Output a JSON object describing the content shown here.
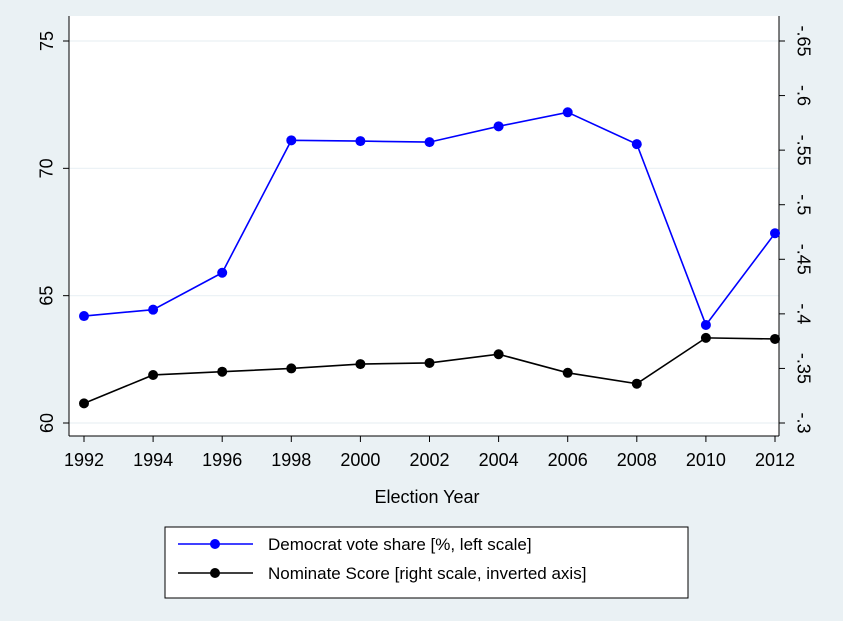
{
  "chart_data": {
    "type": "line",
    "xlabel": "Election Year",
    "x": [
      1992,
      1994,
      1996,
      1998,
      2000,
      2002,
      2004,
      2006,
      2008,
      2010,
      2012
    ],
    "x_ticks": [
      "1992",
      "1994",
      "1996",
      "1998",
      "2000",
      "2002",
      "2004",
      "2006",
      "2008",
      "2010",
      "2012"
    ],
    "left_axis": {
      "ylim": [
        60,
        75
      ],
      "ticks": [
        60,
        65,
        70,
        75
      ],
      "tick_labels": [
        "60",
        "65",
        "70",
        "75"
      ]
    },
    "right_axis": {
      "inverted": true,
      "ylim": [
        -0.3,
        -0.65
      ],
      "ticks": [
        -0.3,
        -0.35,
        -0.4,
        -0.45,
        -0.5,
        -0.55,
        -0.6,
        -0.65
      ],
      "tick_labels": [
        "-.3",
        "-.35",
        "-.4",
        "-.45",
        "-.5",
        "-.55",
        "-.6",
        "-.65"
      ]
    },
    "grid": true,
    "legend_position": "bottom",
    "series": [
      {
        "name": "Democrat vote share [%, left scale]",
        "axis": "left",
        "color": "#0000ff",
        "values": [
          64.2,
          64.45,
          65.9,
          71.1,
          71.07,
          71.03,
          71.65,
          72.2,
          70.95,
          63.85,
          67.45
        ]
      },
      {
        "name": "Nominate Score [right scale, inverted axis]",
        "axis": "right",
        "color": "#000000",
        "values": [
          -0.318,
          -0.344,
          -0.347,
          -0.35,
          -0.354,
          -0.355,
          -0.363,
          -0.346,
          -0.336,
          -0.378,
          -0.377
        ]
      }
    ]
  }
}
